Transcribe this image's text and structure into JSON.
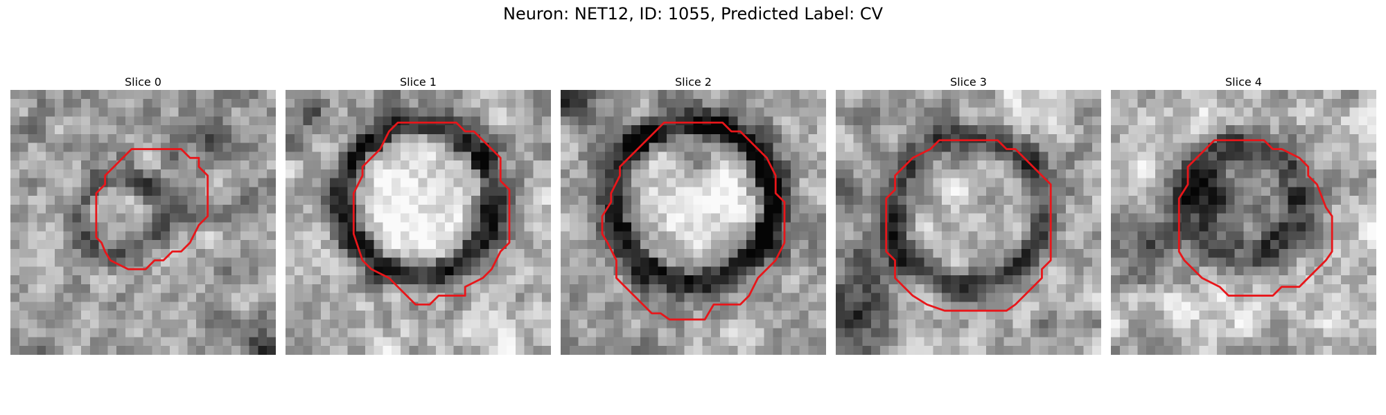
{
  "figure": {
    "title": "Neuron: NET12, ID: 1055, Predicted Label: CV"
  },
  "colors": {
    "roi_outline": "#e8161a",
    "background": "#ffffff"
  },
  "slices": [
    {
      "label": "Slice 0"
    },
    {
      "label": "Slice 1"
    },
    {
      "label": "Slice 2"
    },
    {
      "label": "Slice 3"
    },
    {
      "label": "Slice 4"
    }
  ]
}
